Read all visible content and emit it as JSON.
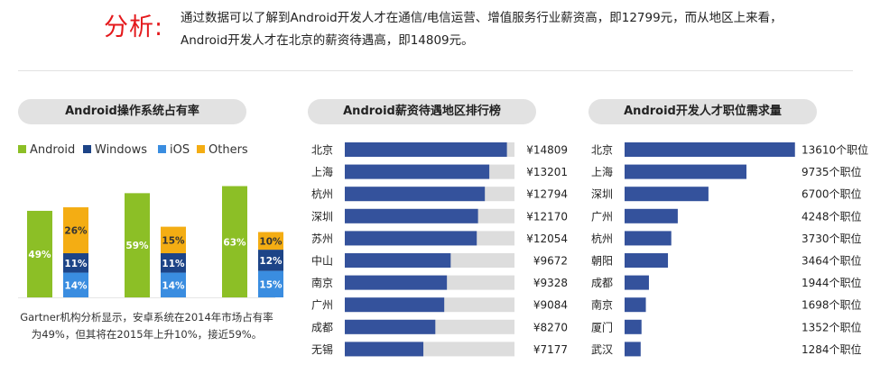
{
  "header": {
    "label": "分析:",
    "text": "通过数据可以了解到Android开发人才在通信/电信运营、增值服务行业薪资高，即12799元，而从地区上来看，Android开发人才在北京的薪资待遇高，即14809元。"
  },
  "pills": {
    "market_share": "Android操作系统占有率",
    "salary": "Android薪资待遇地区排行榜",
    "demand": "Android开发人才职位需求量"
  },
  "caption": "Gartner机构分析显示，安卓系统在2014年市场占有率为49%，但其将在2015年上升10%，接近59%。",
  "colors": {
    "android": "#8cbf26",
    "windows": "#1d4487",
    "ios": "#3a8de0",
    "others": "#f4ad13",
    "salary_bar": "#34529c",
    "track": "#dddddd",
    "accent_red": "#e4191c"
  },
  "chart_data": [
    {
      "type": "bar",
      "stacked_groups": true,
      "title": "Android操作系统占有率",
      "legend_position": "top",
      "groups": [
        {
          "android": 49,
          "windows": 11,
          "ios": 14,
          "others": 26
        },
        {
          "android": 59,
          "windows": 11,
          "ios": 14,
          "others": 15
        },
        {
          "android": 63,
          "windows": 12,
          "ios": 15,
          "others": 10
        }
      ],
      "series": [
        {
          "key": "android",
          "name": "Android",
          "color": "#8cbf26"
        },
        {
          "key": "windows",
          "name": "Windows",
          "color": "#1d4487"
        },
        {
          "key": "ios",
          "name": "iOS",
          "color": "#3a8de0"
        },
        {
          "key": "others",
          "name": "Others",
          "color": "#f4ad13"
        }
      ],
      "ylim": [
        0,
        70
      ]
    },
    {
      "type": "bar",
      "orientation": "horizontal",
      "title": "Android薪资待遇地区排行榜",
      "categories": [
        "北京",
        "上海",
        "杭州",
        "深圳",
        "苏州",
        "中山",
        "南京",
        "广州",
        "成都",
        "无锡"
      ],
      "values": [
        14809,
        13201,
        12794,
        12170,
        12054,
        9672,
        9328,
        9084,
        8270,
        7177
      ],
      "labels": [
        "¥14809",
        "¥13201",
        "¥12794",
        "¥12170",
        "¥12054",
        "¥9672",
        "¥9328",
        "¥9084",
        "¥8270",
        "¥7177"
      ],
      "xlim": [
        0,
        15500
      ]
    },
    {
      "type": "bar",
      "orientation": "horizontal",
      "title": "Android开发人才职位需求量",
      "categories": [
        "北京",
        "上海",
        "深圳",
        "广州",
        "杭州",
        "朝阳",
        "成都",
        "南京",
        "厦门",
        "武汉"
      ],
      "values": [
        13610,
        9735,
        6700,
        4248,
        3730,
        3464,
        1944,
        1698,
        1352,
        1284
      ],
      "labels": [
        "13610个职位",
        "9735个职位",
        "6700个职位",
        "4248个职位",
        "3730个职位",
        "3464个职位",
        "1944个职位",
        "1698个职位",
        "1352个职位",
        "1284个职位"
      ]
    }
  ]
}
